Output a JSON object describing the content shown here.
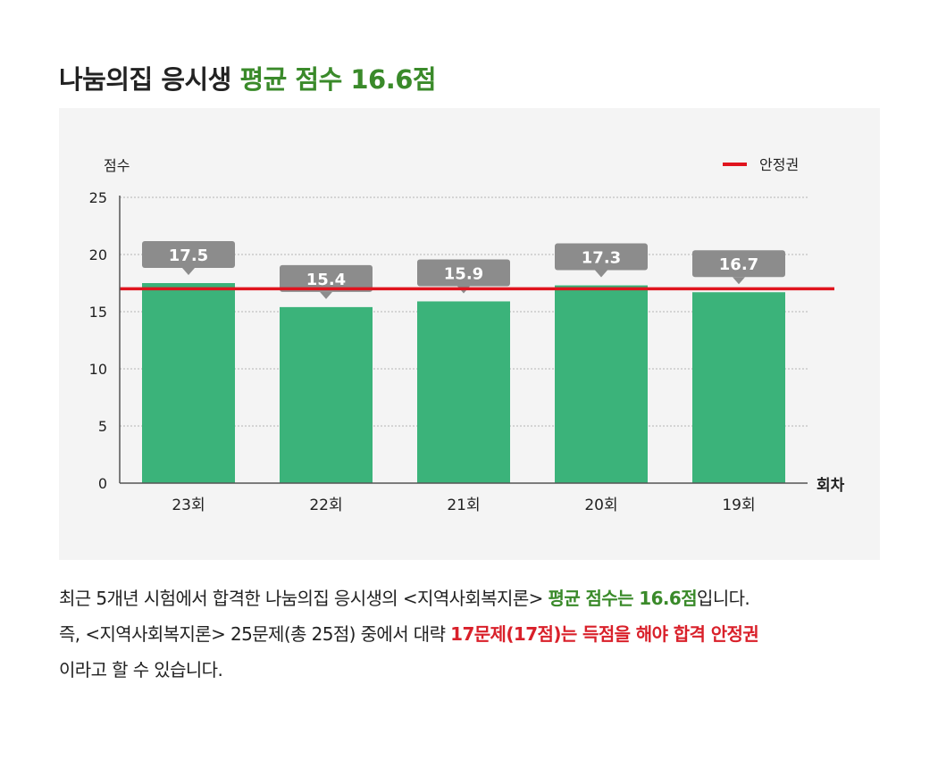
{
  "title": {
    "prefix": "나눔의집 응시생",
    "highlight": "평균 점수 16.6점"
  },
  "colors": {
    "bar": "#3bb37a",
    "threshold": "#e0141e",
    "label_box": "#8c8c8c",
    "highlight_green": "#3a8a2a",
    "highlight_red": "#d9202a"
  },
  "chart_data": {
    "type": "bar",
    "ylabel": "점수",
    "xlabel": "회차",
    "ylim": [
      0,
      25
    ],
    "yticks": [
      0,
      5,
      10,
      15,
      20,
      25
    ],
    "grid": true,
    "categories": [
      "23회",
      "22회",
      "21회",
      "20회",
      "19회"
    ],
    "values": [
      17.5,
      15.4,
      15.9,
      17.3,
      16.7
    ],
    "data_labels": [
      "17.5",
      "15.4",
      "15.9",
      "17.3",
      "16.7"
    ],
    "threshold": {
      "name": "안정권",
      "value": 17
    },
    "legend_position": "top-right"
  },
  "description": {
    "line1_a": "최근 5개년 시험에서 합격한 나눔의집 응시생의 <지역사회복지론> ",
    "line1_b": "평균 점수는 16.6점",
    "line1_c": "입니다.",
    "line2_a": "즉, <지역사회복지론> 25문제(총 25점) 중에서 대략 ",
    "line2_b": "17문제(17점)는 득점을 해야 합격 안정권",
    "line3": "이라고 할 수 있습니다."
  }
}
